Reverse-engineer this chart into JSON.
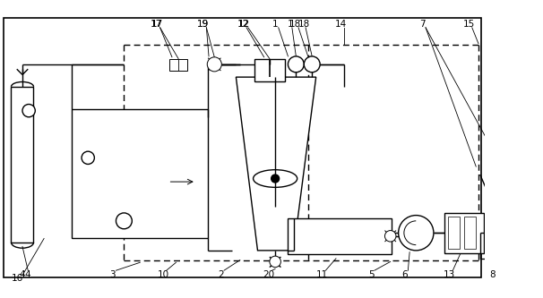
{
  "bg_color": "#ffffff",
  "line_color": "#000000",
  "fig_w": 6.06,
  "fig_h": 3.33,
  "dpi": 100
}
